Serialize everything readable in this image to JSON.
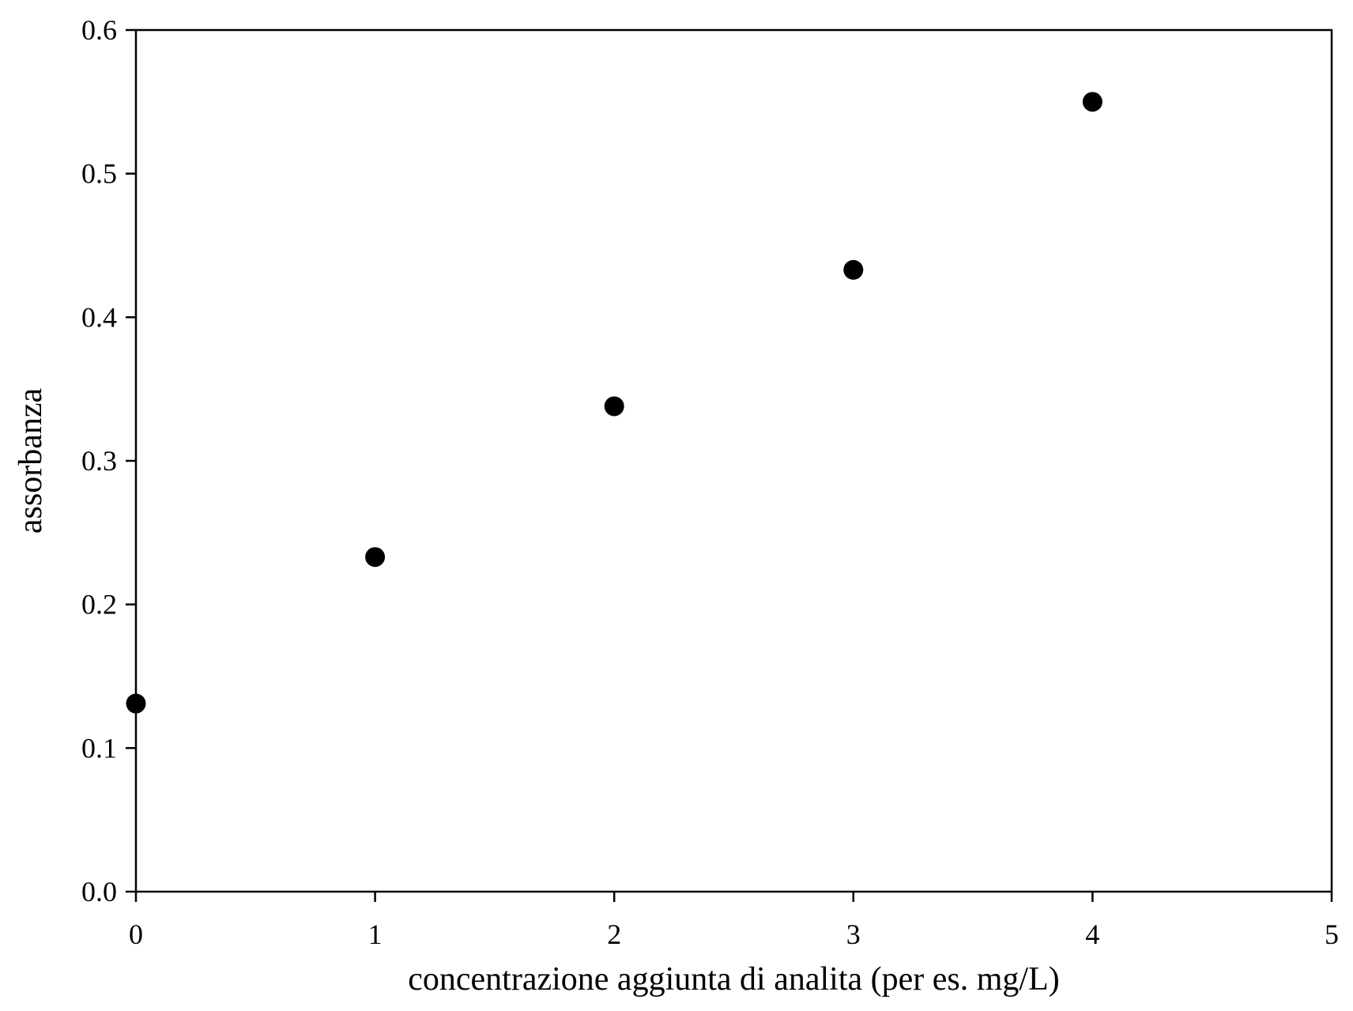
{
  "chart_data": {
    "type": "scatter",
    "xlabel": "concentrazione aggiunta di analita (per es. mg/L)",
    "ylabel": "assorbanza",
    "xlim": [
      0,
      5
    ],
    "ylim": [
      0.0,
      0.6
    ],
    "x_ticks": [
      "0",
      "1",
      "2",
      "3",
      "4",
      "5"
    ],
    "y_ticks": [
      "0.0",
      "0.1",
      "0.2",
      "0.3",
      "0.4",
      "0.5",
      "0.6"
    ],
    "grid": false,
    "marker_color": "#000000",
    "series": [
      {
        "x": [
          0,
          1,
          2,
          3,
          4
        ],
        "y": [
          0.131,
          0.233,
          0.338,
          0.433,
          0.55
        ]
      }
    ]
  }
}
